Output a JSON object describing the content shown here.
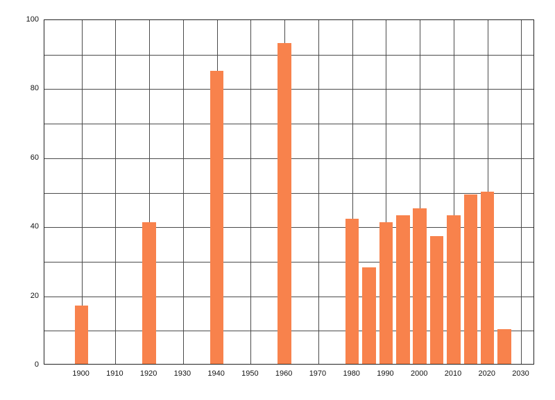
{
  "chart_data": {
    "type": "bar",
    "title": "",
    "xlabel": "",
    "ylabel": "",
    "x": [
      1900,
      1920,
      1940,
      1960,
      1980,
      1985,
      1990,
      1995,
      2000,
      2005,
      2010,
      2015,
      2020,
      2025
    ],
    "values": [
      17,
      41,
      85,
      93,
      42,
      28,
      41,
      43,
      45,
      37,
      43,
      49,
      50,
      10
    ],
    "bar_width_years": 4,
    "xlim": [
      1889,
      2034
    ],
    "ylim": [
      0,
      100
    ],
    "x_tick_values": [
      1900,
      1910,
      1920,
      1930,
      1940,
      1950,
      1960,
      1970,
      1980,
      1990,
      2000,
      2010,
      2020,
      2030
    ],
    "x_tick_labels": [
      "1900",
      "1910",
      "1920",
      "1930",
      "1940",
      "1950",
      "1960",
      "1970",
      "1980",
      "1990",
      "2000",
      "2010",
      "2020",
      "2030"
    ],
    "y_tick_values": [
      0,
      20,
      40,
      60,
      80,
      100
    ],
    "y_tick_labels": [
      "0",
      "20",
      "40",
      "60",
      "80",
      "100"
    ],
    "y_grid_step": 10,
    "grid": true,
    "legend": "none",
    "bar_color": "#f8824c",
    "grid_color": "#4a4a4a",
    "background_color": "#ffffff"
  }
}
